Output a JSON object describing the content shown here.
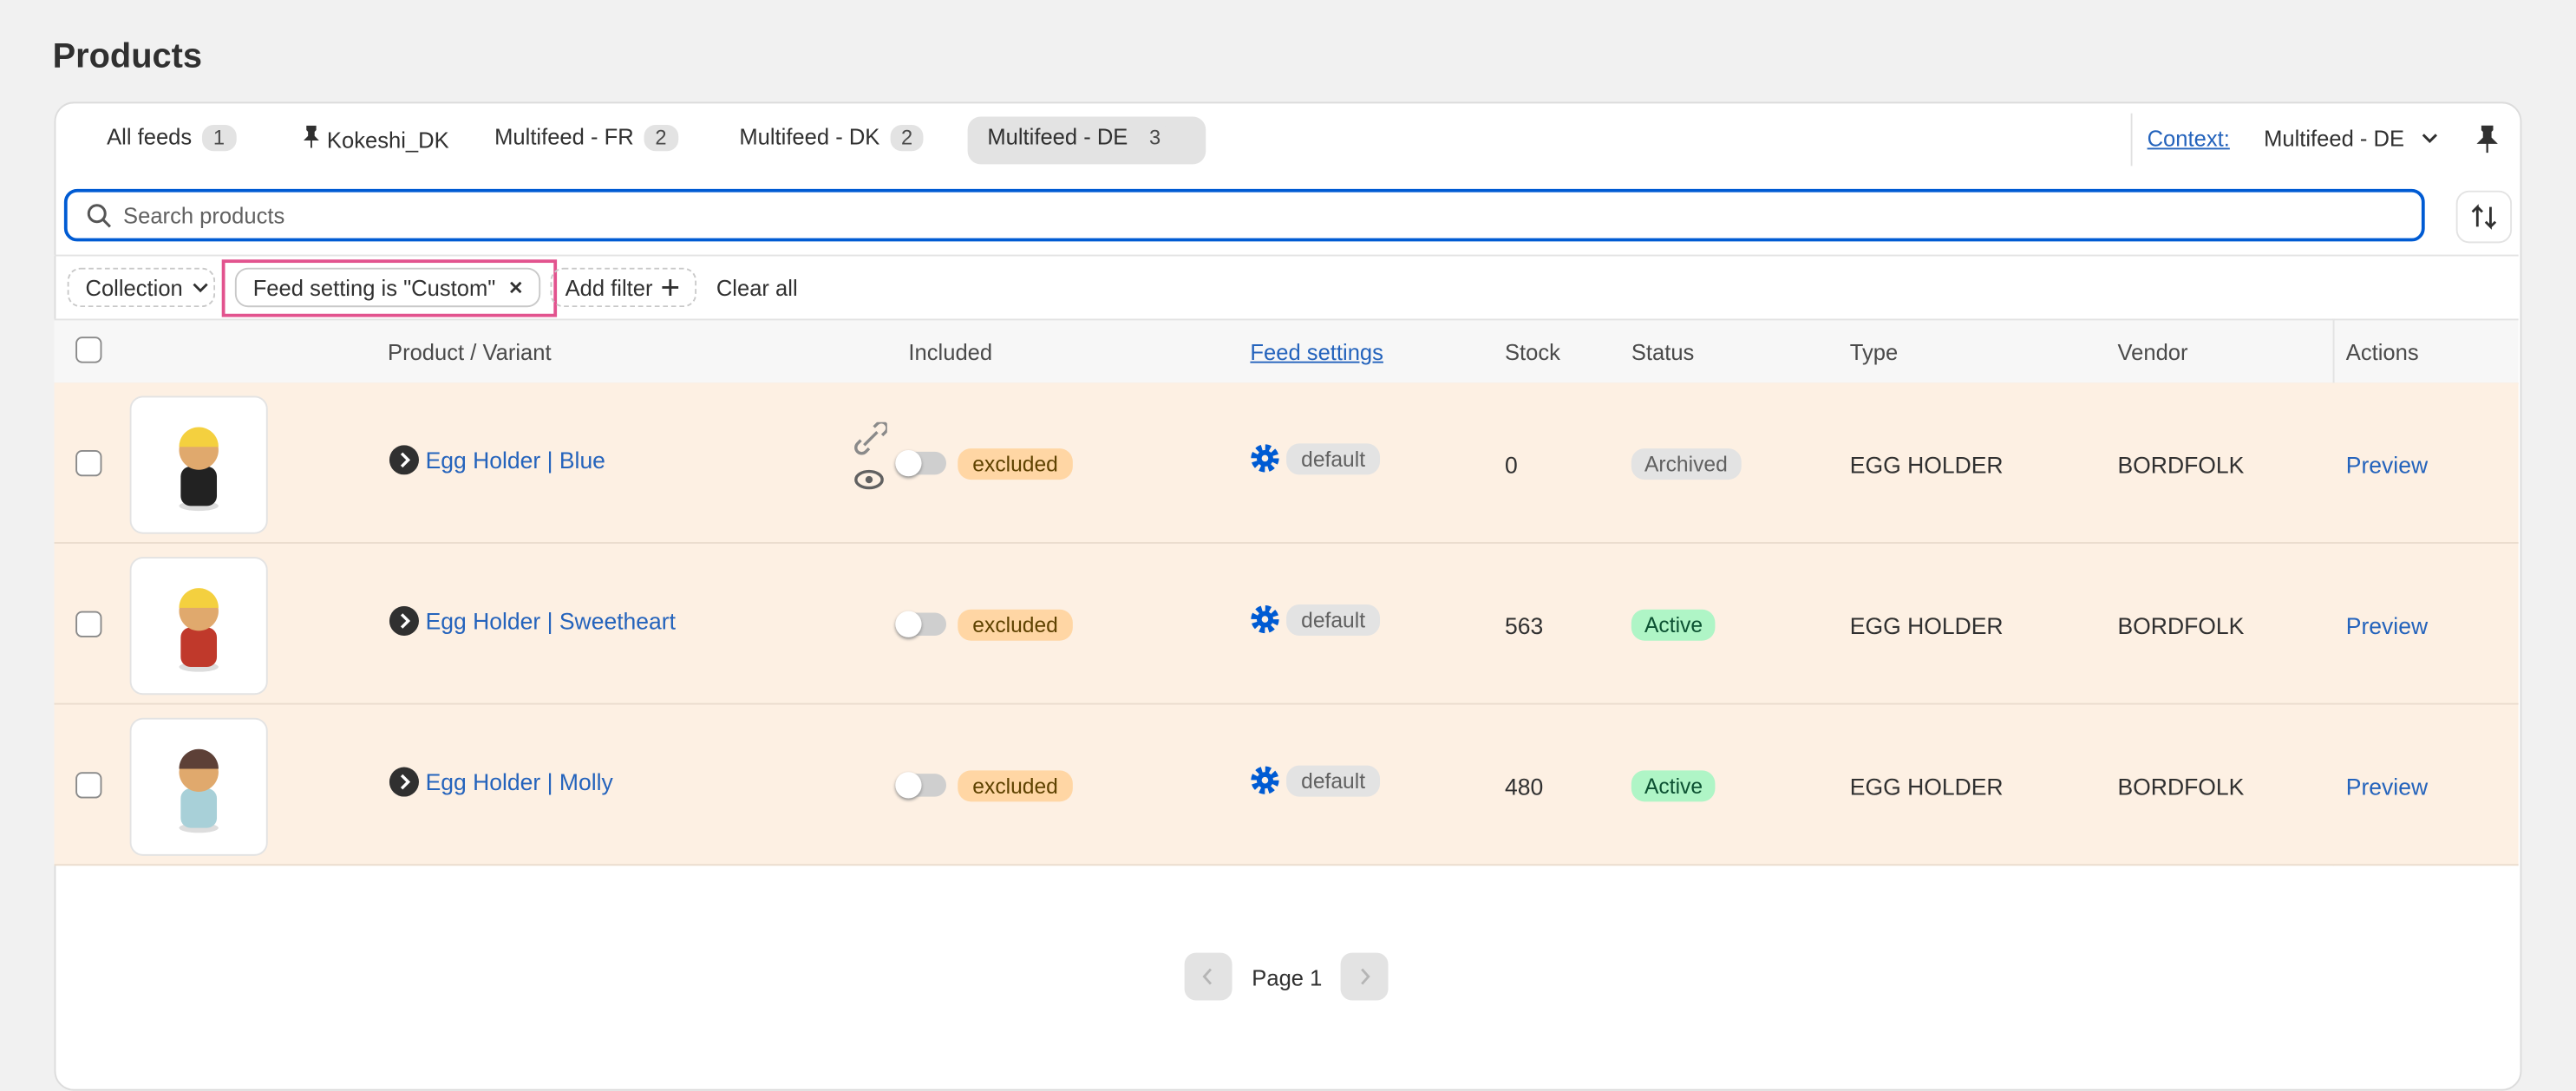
{
  "header": {
    "title": "Products"
  },
  "tabs": [
    {
      "label": "All feeds",
      "count": 1
    },
    {
      "label": "Kokeshi_DK"
    },
    {
      "label": "Multifeed - FR",
      "count": 2
    },
    {
      "label": "Multifeed - DK",
      "count": 2
    },
    {
      "label": "Multifeed - DE",
      "count": 3
    }
  ],
  "context": {
    "label": "Context:",
    "value": "Multifeed - DE"
  },
  "search": {
    "placeholder": "Search products"
  },
  "filters": {
    "collection": "Collection",
    "active": "Feed setting is \"Custom\"",
    "add": "Add filter",
    "clear": "Clear all"
  },
  "table": {
    "headers": [
      "Product / Variant",
      "Included",
      "Feed settings",
      "Stock",
      "Status",
      "Type",
      "Vendor",
      "Actions"
    ],
    "rows": [
      {
        "product": "Egg Holder | Blue",
        "included": "excluded",
        "feed_setting": "default",
        "stock": 0,
        "status": "Archived",
        "type": "EGG HOLDER",
        "vendor": "BORDFOLK",
        "action": "Preview"
      },
      {
        "product": "Egg Holder | Sweetheart",
        "included": "excluded",
        "feed_setting": "default",
        "stock": 563,
        "status": "Active",
        "type": "EGG HOLDER",
        "vendor": "BORDFOLK",
        "action": "Preview"
      },
      {
        "product": "Egg Holder | Molly",
        "included": "excluded",
        "feed_setting": "default",
        "stock": 480,
        "status": "Active",
        "type": "EGG HOLDER",
        "vendor": "BORDFOLK",
        "action": "Preview"
      }
    ]
  },
  "pagination": {
    "label": "Page 1"
  }
}
